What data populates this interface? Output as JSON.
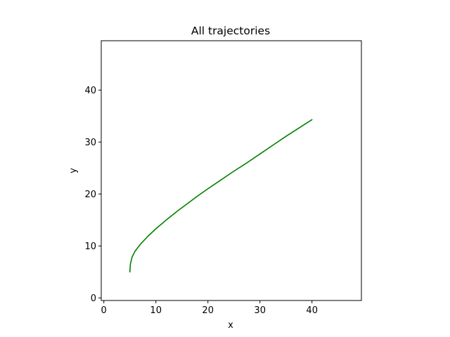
{
  "chart_data": {
    "type": "line",
    "title": "All trajectories",
    "xlabel": "x",
    "ylabel": "y",
    "xlim": [
      -0.5,
      49.5
    ],
    "ylim": [
      -0.5,
      49.5
    ],
    "xticks": [
      0,
      10,
      20,
      30,
      40
    ],
    "yticks": [
      0,
      10,
      20,
      30,
      40
    ],
    "grid": false,
    "series": [
      {
        "color": "#008000",
        "x": [
          5.0,
          5.1,
          5.4,
          6.0,
          7.0,
          8.5,
          10.0,
          12.0,
          14.0,
          16.0,
          18.0,
          20.0,
          22.5,
          25.0,
          27.5,
          30.0,
          32.5,
          35.0,
          37.5,
          40.0
        ],
        "y": [
          5.0,
          6.5,
          7.8,
          9.0,
          10.3,
          11.9,
          13.3,
          15.0,
          16.6,
          18.1,
          19.6,
          21.0,
          22.7,
          24.4,
          26.0,
          27.7,
          29.4,
          31.1,
          32.7,
          34.3
        ]
      }
    ]
  }
}
